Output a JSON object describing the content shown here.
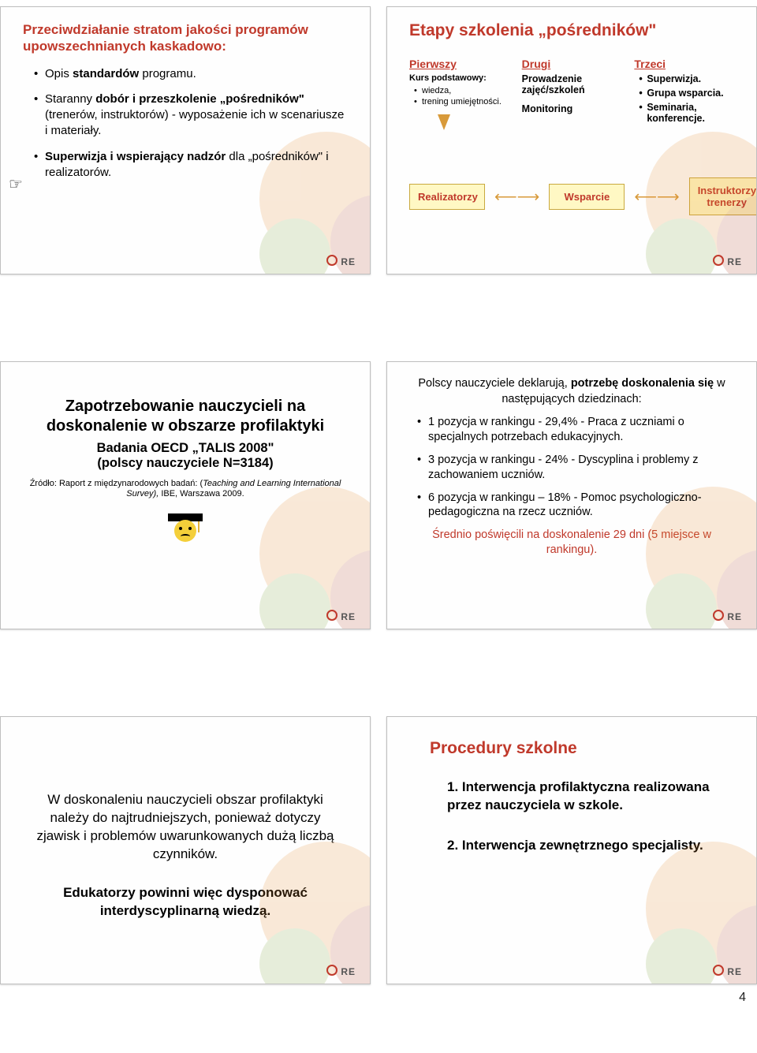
{
  "page_number": "4",
  "footer_logo_text": "RE",
  "colors": {
    "accent_red": "#c0392b",
    "box_bg": "#fff8c4",
    "box_border": "#c9a93f",
    "arrow": "#d89a3a",
    "deco_orange": "#e38b2e",
    "deco_brown": "#b4452a",
    "deco_green": "#7fa53f"
  },
  "slide1": {
    "title": "Przeciwdziałanie stratom jakości programów upowszechnianych kaskadowo:",
    "items": [
      {
        "prefix": "Opis ",
        "bold": "standardów",
        "suffix": " programu."
      },
      {
        "prefix": "Staranny ",
        "bold": "dobór i przeszkolenie „pośredników\"",
        "suffix": " (trenerów, instruktorów) - wyposażenie ich w scenariusze i materiały."
      },
      {
        "prefix": "",
        "bold": "Superwizja i wspierający nadzór",
        "suffix": " dla „pośredników\" i realizatorów."
      }
    ],
    "hand_glyph": "☞"
  },
  "slide2": {
    "title": "Etapy szkolenia „pośredników\"",
    "col1": {
      "head": "Pierwszy",
      "sub": "Kurs podstawowy:",
      "items": [
        "wiedza,",
        "trening umiejętności."
      ]
    },
    "col2": {
      "head": "Drugi",
      "line1": "Prowadzenie zajęć/szkoleń",
      "line2": "Monitoring"
    },
    "col3": {
      "head": "Trzeci",
      "items": [
        "Superwizja.",
        "Grupa wsparcia.",
        "Seminaria, konferencje."
      ]
    },
    "boxes": {
      "left": "Realizatorzy",
      "mid": "Wsparcie",
      "right": "Instruktorzy/ trenerzy"
    }
  },
  "slide3": {
    "title": "Zapotrzebowanie nauczycieli na doskonalenie w obszarze profilaktyki",
    "sub1": "Badania OECD „TALIS 2008\"",
    "sub2": "(polscy nauczyciele N=3184)",
    "source_prefix": "Źródło: Raport z międzynarodowych badań: (",
    "source_italic": "Teaching and Learning International Survey),",
    "source_suffix": " IBE, Warszawa 2009."
  },
  "slide4": {
    "lead_pre": "Polscy nauczyciele deklarują, ",
    "lead_bold": "potrzebę doskonalenia się",
    "lead_post": " w następujących dziedzinach:",
    "items": [
      "1 pozycja w rankingu - 29,4% - Praca z uczniami o specjalnych potrzebach edukacyjnych.",
      "3 pozycja w rankingu - 24% - Dyscyplina i problemy z zachowaniem uczniów.",
      "6 pozycja w rankingu – 18% - Pomoc psychologiczno-pedagogiczna na rzecz uczniów."
    ],
    "avg": "Średnio poświęcili na doskonalenie 29 dni (5 miejsce w rankingu)."
  },
  "slide5": {
    "p1": "W doskonaleniu nauczycieli obszar profilaktyki należy do najtrudniejszych, ponieważ dotyczy zjawisk i problemów uwarunkowanych dużą liczbą czynników.",
    "p2": "Edukatorzy powinni więc dysponować interdyscyplinarną wiedzą."
  },
  "slide6": {
    "title": "Procedury szkolne",
    "items": [
      {
        "num": "1.",
        "text": "Interwencja profilaktyczna realizowana przez nauczyciela w szkole."
      },
      {
        "num": "2.",
        "text": "Interwencja zewnętrznego specjalisty."
      }
    ]
  }
}
